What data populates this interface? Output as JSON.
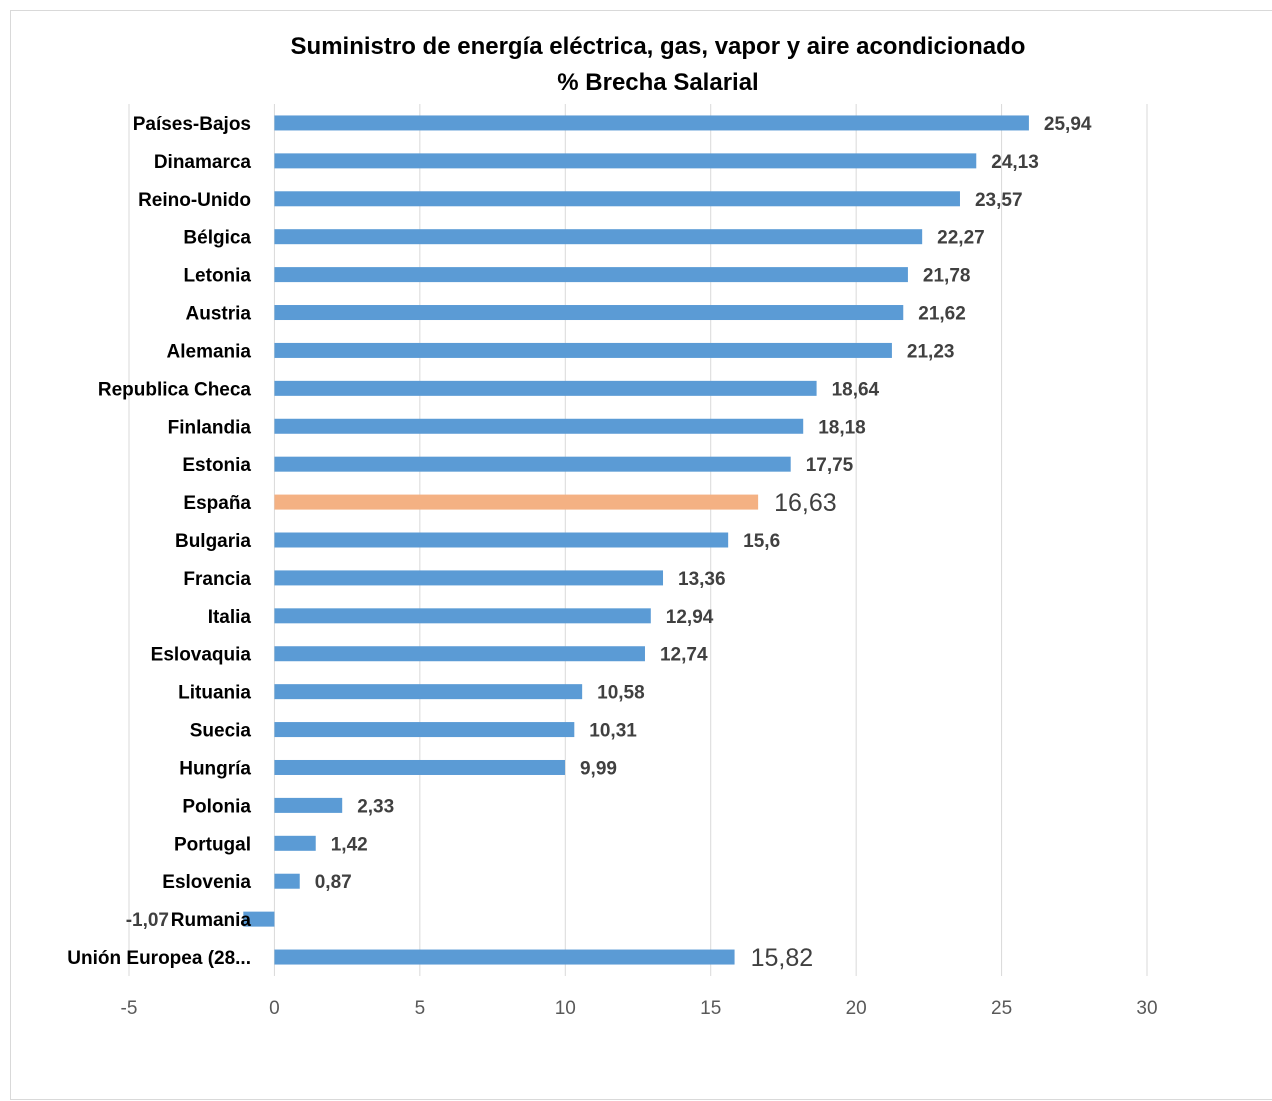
{
  "chart_data": {
    "type": "bar",
    "orientation": "horizontal",
    "title": "Suministro de energía eléctrica, gas, vapor y aire acondicionado",
    "subtitle": "% Brecha Salarial",
    "categories": [
      "Países-Bajos",
      "Dinamarca",
      "Reino-Unido",
      "Bélgica",
      "Letonia",
      "Austria",
      "Alemania",
      "Republica Checa",
      "Finlandia",
      "Estonia",
      "España",
      "Bulgaria",
      "Francia",
      "Italia",
      "Eslovaquia",
      "Lituania",
      "Suecia",
      "Hungría",
      "Polonia",
      "Portugal",
      "Eslovenia",
      "Rumania",
      "Unión Europea (28..."
    ],
    "values": [
      25.94,
      24.13,
      23.57,
      22.27,
      21.78,
      21.62,
      21.23,
      18.64,
      18.18,
      17.75,
      16.63,
      15.6,
      13.36,
      12.94,
      12.74,
      10.58,
      10.31,
      9.99,
      2.33,
      1.42,
      0.87,
      -1.07,
      15.82
    ],
    "value_labels": [
      "25,94",
      "24,13",
      "23,57",
      "22,27",
      "21,78",
      "21,62",
      "21,23",
      "18,64",
      "18,18",
      "17,75",
      "16,63",
      "15,6",
      "13,36",
      "12,94",
      "12,74",
      "10,58",
      "10,31",
      "9,99",
      "2,33",
      "1,42",
      "0,87",
      "-1,07",
      "15,82"
    ],
    "highlight_category": "España",
    "large_label_categories": [
      "España",
      "Unión Europea (28..."
    ],
    "xlim": [
      -5,
      30
    ],
    "xticks": [
      "-5",
      "0",
      "5",
      "10",
      "15",
      "20",
      "25",
      "30"
    ],
    "grid": "vertical",
    "legend": "none",
    "colors": {
      "bar": "#5b9bd5",
      "highlight": "#f4b183",
      "grid": "#d9d9d9"
    }
  }
}
